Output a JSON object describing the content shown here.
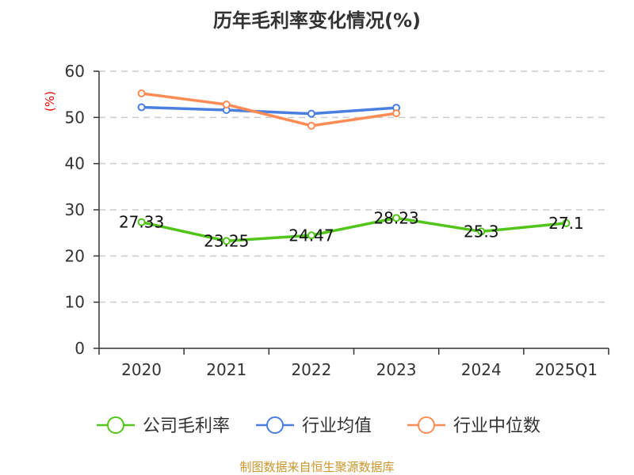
{
  "chart_data": {
    "type": "line",
    "title": "历年毛利率变化情况(%)",
    "ylabel": "(%)",
    "xlabel": "",
    "ylim": [
      0,
      60
    ],
    "yticks": [
      0,
      10,
      20,
      30,
      40,
      50,
      60
    ],
    "grid": true,
    "categories": [
      "2020",
      "2021",
      "2022",
      "2023",
      "2024",
      "2025Q1"
    ],
    "series": [
      {
        "name": "公司毛利率",
        "color": "#52c41a",
        "values": [
          27.33,
          23.25,
          24.47,
          28.23,
          25.3,
          27.1
        ],
        "labels": [
          "27.33",
          "23.25",
          "24.47",
          "28.23",
          "25.3",
          "27.1"
        ]
      },
      {
        "name": "行业均值",
        "color": "#4a7fe0",
        "values": [
          52.2,
          51.6,
          50.8,
          52.1,
          null,
          null
        ]
      },
      {
        "name": "行业中位数",
        "color": "#ff8c55",
        "values": [
          55.2,
          52.8,
          48.2,
          50.9,
          null,
          null
        ]
      }
    ],
    "legend_position": "bottom"
  },
  "footer": "制图数据来自恒生聚源数据库"
}
